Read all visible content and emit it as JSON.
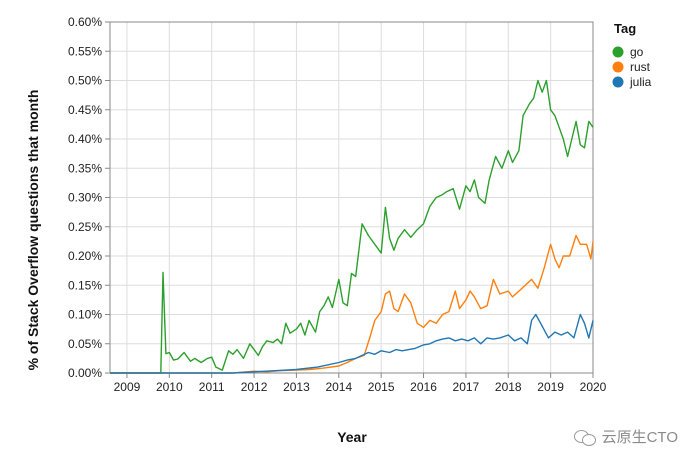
{
  "chart_data": {
    "type": "line",
    "xlabel": "Year",
    "ylabel": "% of Stack Overflow questions that month",
    "xlim": [
      2008.6,
      2020.0
    ],
    "ylim": [
      0,
      0.6
    ],
    "x_ticks": [
      "2009",
      "2010",
      "2011",
      "2012",
      "2013",
      "2014",
      "2015",
      "2016",
      "2017",
      "2018",
      "2019",
      "2020"
    ],
    "y_ticks": [
      "0.00%",
      "0.05%",
      "0.10%",
      "0.15%",
      "0.20%",
      "0.25%",
      "0.30%",
      "0.35%",
      "0.40%",
      "0.45%",
      "0.50%",
      "0.55%",
      "0.60%"
    ],
    "grid": true,
    "legend": {
      "title": "Tag",
      "position": "top-right"
    },
    "series": [
      {
        "name": "go",
        "color": "#2ca02c",
        "points": [
          [
            2008.6,
            0
          ],
          [
            2009.5,
            0
          ],
          [
            2009.8,
            0
          ],
          [
            2009.85,
            0.172
          ],
          [
            2009.92,
            0.033
          ],
          [
            2010.0,
            0.035
          ],
          [
            2010.1,
            0.022
          ],
          [
            2010.2,
            0.024
          ],
          [
            2010.35,
            0.035
          ],
          [
            2010.5,
            0.02
          ],
          [
            2010.6,
            0.025
          ],
          [
            2010.75,
            0.018
          ],
          [
            2010.9,
            0.025
          ],
          [
            2011.0,
            0.027
          ],
          [
            2011.1,
            0.01
          ],
          [
            2011.25,
            0.005
          ],
          [
            2011.4,
            0.038
          ],
          [
            2011.5,
            0.032
          ],
          [
            2011.6,
            0.04
          ],
          [
            2011.75,
            0.025
          ],
          [
            2011.9,
            0.05
          ],
          [
            2012.0,
            0.04
          ],
          [
            2012.1,
            0.03
          ],
          [
            2012.2,
            0.045
          ],
          [
            2012.3,
            0.055
          ],
          [
            2012.45,
            0.052
          ],
          [
            2012.55,
            0.058
          ],
          [
            2012.65,
            0.05
          ],
          [
            2012.75,
            0.085
          ],
          [
            2012.85,
            0.068
          ],
          [
            2013.0,
            0.075
          ],
          [
            2013.1,
            0.085
          ],
          [
            2013.2,
            0.065
          ],
          [
            2013.3,
            0.09
          ],
          [
            2013.45,
            0.07
          ],
          [
            2013.55,
            0.105
          ],
          [
            2013.65,
            0.115
          ],
          [
            2013.75,
            0.13
          ],
          [
            2013.85,
            0.112
          ],
          [
            2014.0,
            0.16
          ],
          [
            2014.1,
            0.12
          ],
          [
            2014.2,
            0.115
          ],
          [
            2014.3,
            0.17
          ],
          [
            2014.4,
            0.165
          ],
          [
            2014.55,
            0.255
          ],
          [
            2014.7,
            0.235
          ],
          [
            2014.85,
            0.22
          ],
          [
            2015.0,
            0.205
          ],
          [
            2015.1,
            0.283
          ],
          [
            2015.2,
            0.23
          ],
          [
            2015.3,
            0.21
          ],
          [
            2015.4,
            0.23
          ],
          [
            2015.55,
            0.245
          ],
          [
            2015.7,
            0.232
          ],
          [
            2015.85,
            0.245
          ],
          [
            2016.0,
            0.255
          ],
          [
            2016.15,
            0.285
          ],
          [
            2016.3,
            0.3
          ],
          [
            2016.45,
            0.305
          ],
          [
            2016.55,
            0.31
          ],
          [
            2016.7,
            0.315
          ],
          [
            2016.85,
            0.28
          ],
          [
            2017.0,
            0.32
          ],
          [
            2017.1,
            0.31
          ],
          [
            2017.2,
            0.33
          ],
          [
            2017.3,
            0.3
          ],
          [
            2017.45,
            0.29
          ],
          [
            2017.55,
            0.33
          ],
          [
            2017.7,
            0.37
          ],
          [
            2017.85,
            0.35
          ],
          [
            2018.0,
            0.38
          ],
          [
            2018.1,
            0.36
          ],
          [
            2018.25,
            0.38
          ],
          [
            2018.35,
            0.44
          ],
          [
            2018.5,
            0.46
          ],
          [
            2018.6,
            0.47
          ],
          [
            2018.7,
            0.5
          ],
          [
            2018.8,
            0.48
          ],
          [
            2018.9,
            0.5
          ],
          [
            2019.0,
            0.45
          ],
          [
            2019.1,
            0.44
          ],
          [
            2019.2,
            0.42
          ],
          [
            2019.3,
            0.4
          ],
          [
            2019.4,
            0.37
          ],
          [
            2019.5,
            0.4
          ],
          [
            2019.6,
            0.43
          ],
          [
            2019.7,
            0.39
          ],
          [
            2019.8,
            0.385
          ],
          [
            2019.9,
            0.43
          ],
          [
            2020.0,
            0.42
          ]
        ]
      },
      {
        "name": "rust",
        "color": "#ff7f0e",
        "points": [
          [
            2008.6,
            0
          ],
          [
            2010.0,
            0
          ],
          [
            2011.5,
            0
          ],
          [
            2012.0,
            0.003
          ],
          [
            2012.3,
            0.002
          ],
          [
            2012.6,
            0.004
          ],
          [
            2013.0,
            0.005
          ],
          [
            2013.3,
            0.006
          ],
          [
            2013.6,
            0.008
          ],
          [
            2014.0,
            0.012
          ],
          [
            2014.2,
            0.018
          ],
          [
            2014.4,
            0.025
          ],
          [
            2014.6,
            0.03
          ],
          [
            2014.75,
            0.065
          ],
          [
            2014.85,
            0.09
          ],
          [
            2015.0,
            0.105
          ],
          [
            2015.1,
            0.135
          ],
          [
            2015.2,
            0.14
          ],
          [
            2015.3,
            0.11
          ],
          [
            2015.4,
            0.105
          ],
          [
            2015.55,
            0.135
          ],
          [
            2015.7,
            0.12
          ],
          [
            2015.85,
            0.085
          ],
          [
            2016.0,
            0.078
          ],
          [
            2016.15,
            0.09
          ],
          [
            2016.3,
            0.085
          ],
          [
            2016.45,
            0.1
          ],
          [
            2016.6,
            0.105
          ],
          [
            2016.75,
            0.14
          ],
          [
            2016.85,
            0.11
          ],
          [
            2017.0,
            0.125
          ],
          [
            2017.1,
            0.14
          ],
          [
            2017.2,
            0.13
          ],
          [
            2017.35,
            0.11
          ],
          [
            2017.5,
            0.115
          ],
          [
            2017.65,
            0.16
          ],
          [
            2017.8,
            0.135
          ],
          [
            2018.0,
            0.14
          ],
          [
            2018.1,
            0.13
          ],
          [
            2018.25,
            0.14
          ],
          [
            2018.4,
            0.15
          ],
          [
            2018.55,
            0.16
          ],
          [
            2018.7,
            0.145
          ],
          [
            2018.85,
            0.18
          ],
          [
            2019.0,
            0.22
          ],
          [
            2019.1,
            0.195
          ],
          [
            2019.2,
            0.18
          ],
          [
            2019.3,
            0.2
          ],
          [
            2019.45,
            0.2
          ],
          [
            2019.6,
            0.235
          ],
          [
            2019.7,
            0.22
          ],
          [
            2019.85,
            0.22
          ],
          [
            2019.95,
            0.195
          ],
          [
            2020.0,
            0.225
          ]
        ]
      },
      {
        "name": "julia",
        "color": "#1f77b4",
        "points": [
          [
            2008.6,
            0
          ],
          [
            2010.0,
            0
          ],
          [
            2011.5,
            0
          ],
          [
            2012.0,
            0.002
          ],
          [
            2012.5,
            0.004
          ],
          [
            2013.0,
            0.006
          ],
          [
            2013.5,
            0.01
          ],
          [
            2014.0,
            0.018
          ],
          [
            2014.2,
            0.022
          ],
          [
            2014.4,
            0.025
          ],
          [
            2014.55,
            0.03
          ],
          [
            2014.7,
            0.035
          ],
          [
            2014.85,
            0.032
          ],
          [
            2015.0,
            0.038
          ],
          [
            2015.2,
            0.035
          ],
          [
            2015.35,
            0.04
          ],
          [
            2015.5,
            0.038
          ],
          [
            2015.65,
            0.04
          ],
          [
            2015.8,
            0.042
          ],
          [
            2016.0,
            0.048
          ],
          [
            2016.15,
            0.05
          ],
          [
            2016.3,
            0.055
          ],
          [
            2016.45,
            0.058
          ],
          [
            2016.6,
            0.06
          ],
          [
            2016.75,
            0.055
          ],
          [
            2016.9,
            0.058
          ],
          [
            2017.05,
            0.055
          ],
          [
            2017.2,
            0.06
          ],
          [
            2017.35,
            0.05
          ],
          [
            2017.5,
            0.06
          ],
          [
            2017.65,
            0.058
          ],
          [
            2017.8,
            0.06
          ],
          [
            2018.0,
            0.065
          ],
          [
            2018.15,
            0.055
          ],
          [
            2018.3,
            0.06
          ],
          [
            2018.45,
            0.05
          ],
          [
            2018.55,
            0.09
          ],
          [
            2018.65,
            0.1
          ],
          [
            2018.8,
            0.08
          ],
          [
            2018.95,
            0.06
          ],
          [
            2019.1,
            0.07
          ],
          [
            2019.25,
            0.065
          ],
          [
            2019.4,
            0.07
          ],
          [
            2019.55,
            0.06
          ],
          [
            2019.7,
            0.1
          ],
          [
            2019.8,
            0.085
          ],
          [
            2019.9,
            0.06
          ],
          [
            2020.0,
            0.09
          ]
        ]
      }
    ]
  },
  "watermark": {
    "text": "云原生CTO",
    "icon": "wechat-icon"
  }
}
